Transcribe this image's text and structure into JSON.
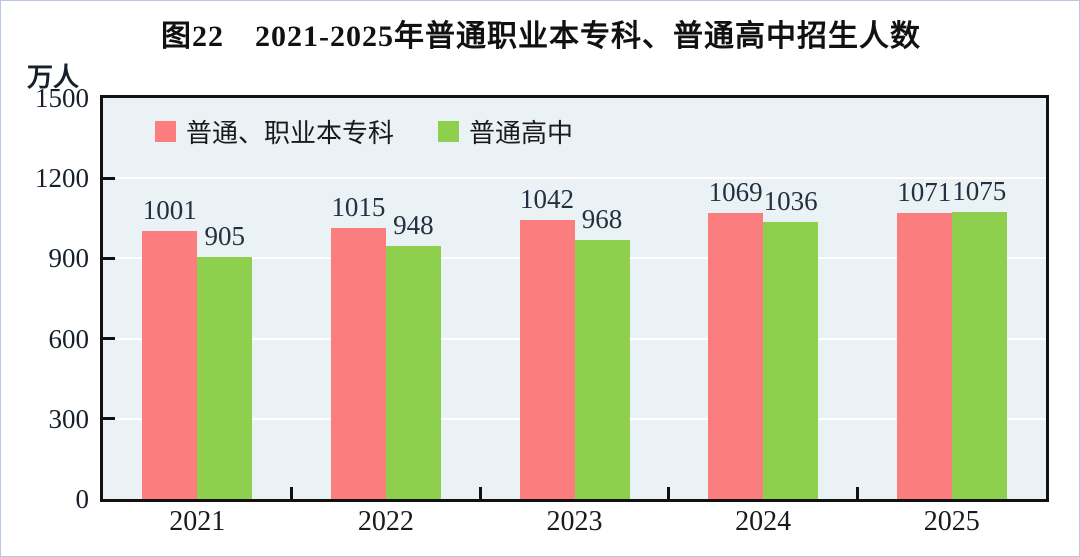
{
  "chart_data": {
    "type": "bar",
    "title": "图22　2021-2025年普通职业本专科、普通高中招生人数",
    "unit_label": "万人",
    "categories": [
      "2021",
      "2022",
      "2023",
      "2024",
      "2025"
    ],
    "series": [
      {
        "name": "普通、职业本专科",
        "color": "#fb7d7d",
        "values": [
          1001,
          1015,
          1042,
          1069,
          1071
        ]
      },
      {
        "name": "普通高中",
        "color": "#8ed04e",
        "values": [
          905,
          948,
          968,
          1036,
          1075
        ]
      }
    ],
    "ylim": [
      0,
      1500
    ],
    "yticks": [
      0,
      300,
      600,
      900,
      1200,
      1500
    ],
    "grid": true,
    "legend_position": "top-left",
    "colors": {
      "plot_bg": "#ebf2f6",
      "grid": "#ffffff",
      "axis": "#111111",
      "value_label": "#233040",
      "tick_label": "#16202c"
    }
  }
}
